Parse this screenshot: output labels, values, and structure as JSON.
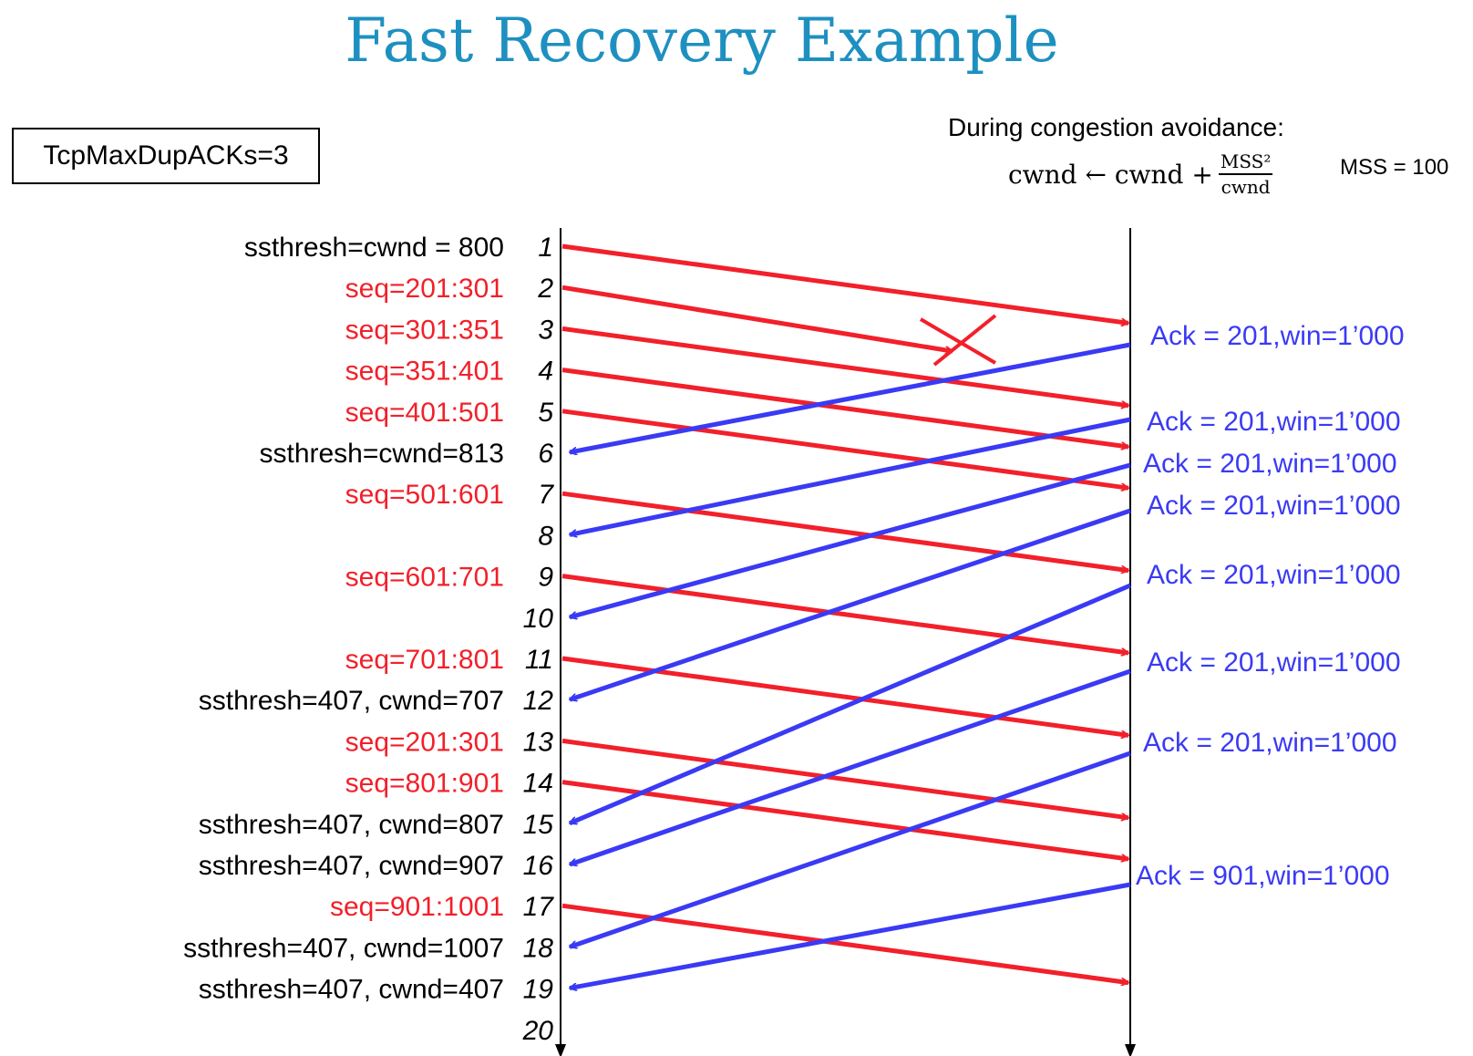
{
  "title": "Fast Recovery Example",
  "param_box": "TcpMaxDupACKs=3",
  "congestion": {
    "heading": "During congestion avoidance:",
    "lhs": "cwnd ← cwnd +",
    "numerator": "MSS²",
    "denominator": "cwnd",
    "mss": "MSS = 100"
  },
  "colors": {
    "data": "#f2202a",
    "ack": "#3a3af5",
    "title": "#1E90C0"
  },
  "time_ticks": [
    "1",
    "2",
    "3",
    "4",
    "5",
    "6",
    "7",
    "8",
    "9",
    "10",
    "11",
    "12",
    "13",
    "14",
    "15",
    "16",
    "17",
    "18",
    "19",
    "20"
  ],
  "left_labels": [
    {
      "tick": 1,
      "text": "ssthresh=cwnd = 800",
      "kind": "state"
    },
    {
      "tick": 2,
      "text": "seq=201:301",
      "kind": "seq"
    },
    {
      "tick": 3,
      "text": "seq=301:351",
      "kind": "seq"
    },
    {
      "tick": 4,
      "text": "seq=351:401",
      "kind": "seq"
    },
    {
      "tick": 5,
      "text": "seq=401:501",
      "kind": "seq"
    },
    {
      "tick": 6,
      "text": "ssthresh=cwnd=813",
      "kind": "state"
    },
    {
      "tick": 7,
      "text": "seq=501:601",
      "kind": "seq"
    },
    {
      "tick": 9,
      "text": "seq=601:701",
      "kind": "seq"
    },
    {
      "tick": 11,
      "text": "seq=701:801",
      "kind": "seq"
    },
    {
      "tick": 12,
      "text": "ssthresh=407, cwnd=707",
      "kind": "state"
    },
    {
      "tick": 13,
      "text": "seq=201:301",
      "kind": "seq"
    },
    {
      "tick": 14,
      "text": "seq=801:901",
      "kind": "seq"
    },
    {
      "tick": 15,
      "text": "ssthresh=407, cwnd=807",
      "kind": "state"
    },
    {
      "tick": 16,
      "text": "ssthresh=407, cwnd=907",
      "kind": "state"
    },
    {
      "tick": 17,
      "text": "seq=901:1001",
      "kind": "seq"
    },
    {
      "tick": 18,
      "text": "ssthresh=407, cwnd=1007",
      "kind": "state"
    },
    {
      "tick": 19,
      "text": "ssthresh=407, cwnd=407",
      "kind": "state"
    }
  ],
  "acks": [
    "Ack = 201,win=1’000",
    "Ack = 201,win=1’000",
    "Ack = 201,win=1’000",
    "Ack = 201,win=1’000",
    "Ack = 201,win=1’000",
    "Ack = 201,win=1’000",
    "Ack = 201,win=1’000",
    "Ack = 901,win=1’000"
  ],
  "data_segments": [
    {
      "from_tick": 1,
      "arrive_tick": 3
    },
    {
      "from_tick": 2,
      "lost": true
    },
    {
      "from_tick": 3,
      "arrive_tick": 5
    },
    {
      "from_tick": 4,
      "arrive_tick": 6
    },
    {
      "from_tick": 5,
      "arrive_tick": 7
    },
    {
      "from_tick": 7,
      "arrive_tick": 9
    },
    {
      "from_tick": 9,
      "arrive_tick": 11
    },
    {
      "from_tick": 11,
      "arrive_tick": 13
    },
    {
      "from_tick": 13,
      "arrive_tick": 15
    },
    {
      "from_tick": 14,
      "arrive_tick": 16
    },
    {
      "from_tick": 17,
      "arrive_tick": 19
    }
  ],
  "ack_segments": [
    {
      "ack": 0,
      "return_tick": 6
    },
    {
      "ack": 1,
      "return_tick": 8
    },
    {
      "ack": 2,
      "return_tick": 10
    },
    {
      "ack": 3,
      "return_tick": 12
    },
    {
      "ack": 4,
      "return_tick": 15
    },
    {
      "ack": 5,
      "return_tick": 16
    },
    {
      "ack": 6,
      "return_tick": 18
    },
    {
      "ack": 7,
      "return_tick": 19
    }
  ]
}
